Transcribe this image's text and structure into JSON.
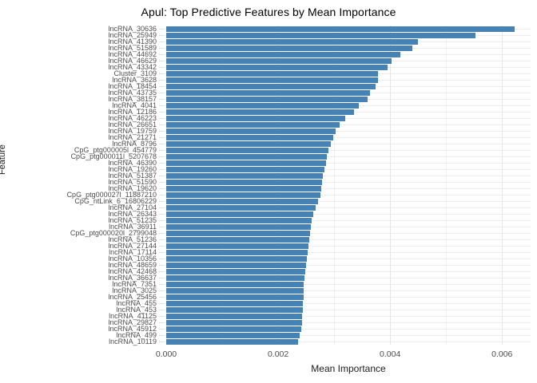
{
  "chart_data": {
    "type": "bar",
    "orientation": "horizontal",
    "title": "Apul: Top Predictive Features by Mean Importance",
    "xlabel": "Mean Importance",
    "ylabel": "Feature",
    "xlim": [
      0,
      0.00651
    ],
    "x_tick_values": [
      0,
      0.002,
      0.004,
      0.006
    ],
    "x_tick_labels": [
      "0.000",
      "0.002",
      "0.004",
      "0.006"
    ],
    "x_minor_grid_values": [
      0.001,
      0.003,
      0.005
    ],
    "grid": "on",
    "legend": "none",
    "categories": [
      "lncRNA_30636",
      "lncRNA_25949",
      "lncRNA_41390",
      "lncRNA_51589",
      "lncRNA_44692",
      "lncRNA_46629",
      "lncRNA_43342",
      "Cluster_3109",
      "lncRNA_3628",
      "lncRNA_18454",
      "lncRNA_43735",
      "lncRNA_38157",
      "lncRNA_4041",
      "lncRNA_12186",
      "lncRNA_46223",
      "lncRNA_26651",
      "lncRNA_19759",
      "lncRNA_21271",
      "lncRNA_8796",
      "CpG_ptg000005l_454779",
      "CpG_ptg000011l_5207678",
      "lncRNA_46390",
      "lncRNA_19260",
      "lncRNA_51387",
      "lncRNA_51590",
      "lncRNA_19620",
      "CpG_ptg000027l_11887210",
      "CpG_ntLink_6_16806229",
      "lncRNA_27104",
      "lncRNA_26343",
      "lncRNA_51235",
      "lncRNA_36911",
      "CpG_ptg000020l_2799048",
      "lncRNA_51236",
      "lncRNA_27144",
      "lncRNA_17114",
      "lncRNA_10356",
      "lncRNA_48659",
      "lncRNA_42468",
      "lncRNA_36637",
      "lncRNA_7351",
      "lncRNA_3025",
      "lncRNA_25456",
      "lncRNA_455",
      "lncRNA_453",
      "lncRNA_41125",
      "lncRNA_29827",
      "lncRNA_45912",
      "lncRNA_499",
      "lncRNA_10119"
    ],
    "values": [
      0.00622,
      0.00553,
      0.0045,
      0.00439,
      0.00418,
      0.00403,
      0.00395,
      0.00379,
      0.00378,
      0.00374,
      0.00364,
      0.0036,
      0.00344,
      0.00336,
      0.0032,
      0.0031,
      0.00303,
      0.00298,
      0.00294,
      0.0029,
      0.00287,
      0.00285,
      0.00282,
      0.0028,
      0.00278,
      0.00277,
      0.00275,
      0.00271,
      0.00267,
      0.00263,
      0.0026,
      0.00259,
      0.00257,
      0.00256,
      0.00254,
      0.00253,
      0.00251,
      0.0025,
      0.00249,
      0.00247,
      0.00246,
      0.00246,
      0.00245,
      0.00244,
      0.00244,
      0.00243,
      0.00242,
      0.00241,
      0.00239,
      0.00236
    ],
    "colors": {
      "bar": "#4682b4",
      "grid_major": "#e3e3e3",
      "grid_minor": "#f0f0f0",
      "grid_row": "#ededed",
      "tick_text": "#4d4d4d",
      "axis_title_text": "#1a1a1a",
      "title_text": "#000000",
      "background": "#ffffff"
    }
  }
}
